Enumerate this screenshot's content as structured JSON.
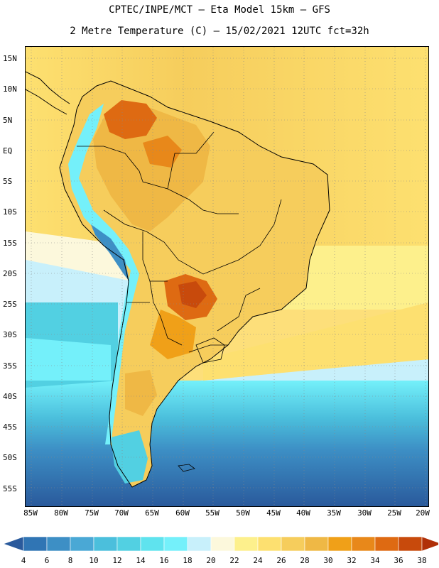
{
  "header": {
    "line1": "CPTEC/INPE/MCT –  Eta Model 15km – GFS",
    "line2": "2 Metre Temperature (C) – 15/02/2021 12UTC fct=32h"
  },
  "map": {
    "lat_labels": [
      "15N",
      "10N",
      "5N",
      "EQ",
      "5S",
      "10S",
      "15S",
      "20S",
      "25S",
      "30S",
      "35S",
      "40S",
      "45S",
      "50S",
      "55S"
    ],
    "lon_labels": [
      "85W",
      "80W",
      "75W",
      "70W",
      "65W",
      "60W",
      "55W",
      "50W",
      "45W",
      "40W",
      "35W",
      "30W",
      "25W",
      "20W"
    ]
  },
  "legend": {
    "labels": [
      "4",
      "6",
      "8",
      "10",
      "12",
      "14",
      "16",
      "18",
      "20",
      "22",
      "24",
      "26",
      "28",
      "30",
      "32",
      "34",
      "36",
      "38"
    ],
    "colors": [
      "#2a5a9c",
      "#3075b4",
      "#3d8fc5",
      "#4aa8d5",
      "#4bbfdc",
      "#52d0e2",
      "#5fe3ee",
      "#74f0fa",
      "#c8f0fb",
      "#fcf8dc",
      "#fdf08c",
      "#fde070",
      "#f6cd5c",
      "#efb845",
      "#f0a018",
      "#e8881a",
      "#de6a12",
      "#c84a0c",
      "#b03008"
    ]
  }
}
